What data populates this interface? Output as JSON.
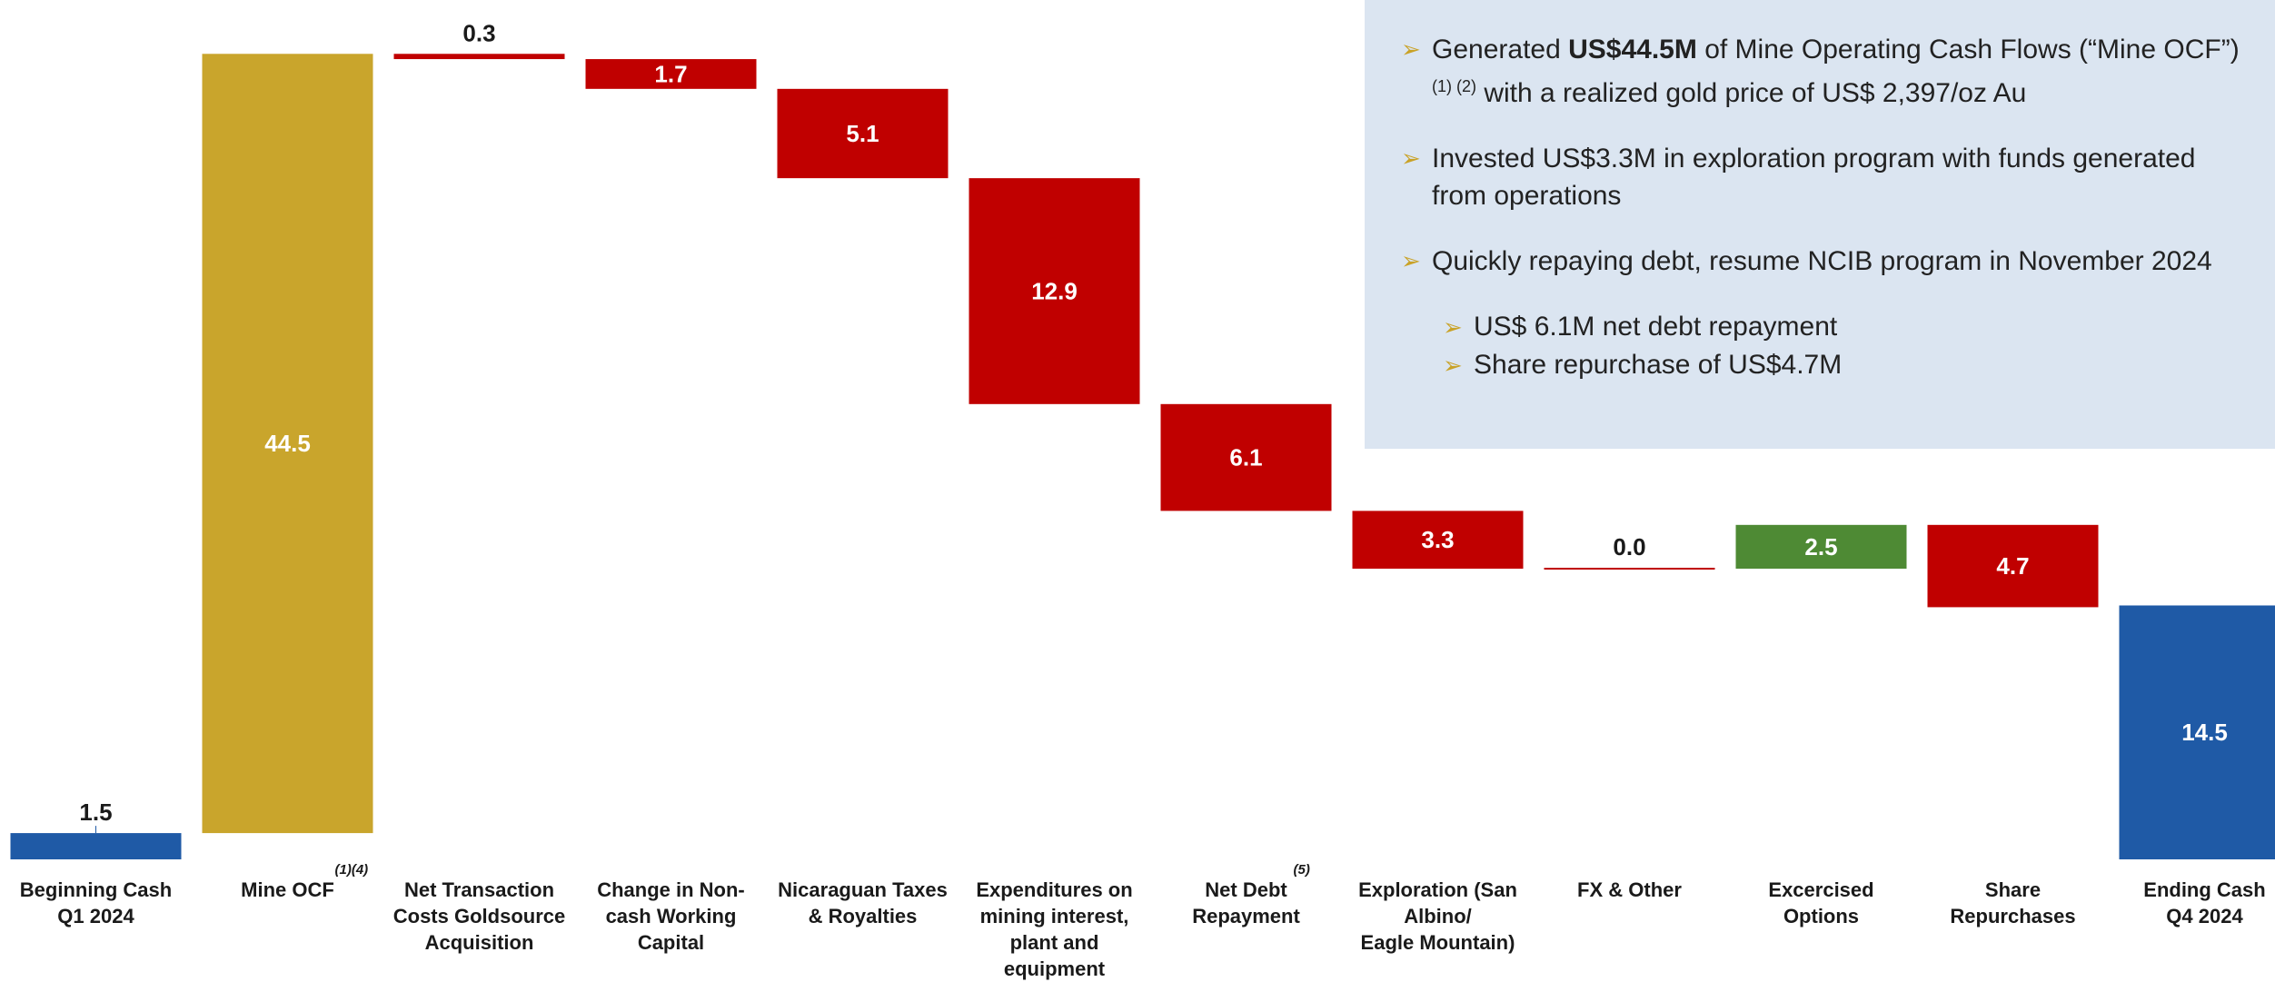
{
  "chart_data": {
    "type": "waterfall",
    "unit": "US$M",
    "categories": [
      {
        "label": "Beginning Cash\nQ1 2024",
        "sup": ""
      },
      {
        "label": "Mine OCF",
        "sup": "(1)(4)"
      },
      {
        "label": "Net Transaction\nCosts Goldsource\nAcquisition",
        "sup": ""
      },
      {
        "label": "Change in Non-\ncash Working\nCapital",
        "sup": ""
      },
      {
        "label": "Nicaraguan Taxes\n& Royalties",
        "sup": ""
      },
      {
        "label": "Expenditures on\nmining interest,\nplant and\nequipment",
        "sup": ""
      },
      {
        "label": "Net Debt\nRepayment",
        "sup": "(5)"
      },
      {
        "label": "Exploration (San\nAlbino/\nEagle Mountain)",
        "sup": ""
      },
      {
        "label": "FX & Other",
        "sup": ""
      },
      {
        "label": "Excercised\nOptions",
        "sup": ""
      },
      {
        "label": "Share\nRepurchases",
        "sup": ""
      },
      {
        "label": "Ending Cash\nQ4 2024",
        "sup": ""
      }
    ],
    "bars": [
      {
        "kind": "total",
        "value": 1.5,
        "label": "1.5"
      },
      {
        "kind": "increase",
        "value": 44.5,
        "label": "44.5"
      },
      {
        "kind": "decrease",
        "value": 0.3,
        "label": "0.3"
      },
      {
        "kind": "decrease",
        "value": 1.7,
        "label": "1.7"
      },
      {
        "kind": "decrease",
        "value": 5.1,
        "label": "5.1"
      },
      {
        "kind": "decrease",
        "value": 12.9,
        "label": "12.9"
      },
      {
        "kind": "decrease",
        "value": 6.1,
        "label": "6.1"
      },
      {
        "kind": "decrease",
        "value": 3.3,
        "label": "3.3"
      },
      {
        "kind": "decrease",
        "value": 0.0,
        "label": "0.0"
      },
      {
        "kind": "increase",
        "value": 2.5,
        "label": "2.5"
      },
      {
        "kind": "decrease",
        "value": 4.7,
        "label": "4.7"
      },
      {
        "kind": "total",
        "value": 14.5,
        "label": "14.5"
      }
    ],
    "colors": {
      "total": "#1f5aa6",
      "ocf": "#c9a52c",
      "decrease": "#c00000",
      "increase": "#4e8a34",
      "label_dark": "#1a1a1a",
      "label_light": "#ffffff"
    },
    "ylim": [
      0,
      47
    ],
    "grid": false,
    "legend": "none"
  },
  "info_box": {
    "bullet1_pre": "Generated ",
    "bullet1_bold": "US$44.5M",
    "bullet1_mid": " of Mine Operating Cash Flows (“Mine OCF”) ",
    "bullet1_sup": "(1) (2)",
    "bullet1_post": " with a realized gold price of US$ 2,397/oz Au",
    "bullet2": "Invested US$3.3M in exploration program with funds generated from operations",
    "bullet3": "Quickly repaying debt, resume NCIB program in November 2024",
    "sub1": "US$ 6.1M net debt repayment",
    "sub2": "Share repurchase of US$4.7M",
    "arrow": "➢",
    "bg_color": "#dbe5f1"
  }
}
